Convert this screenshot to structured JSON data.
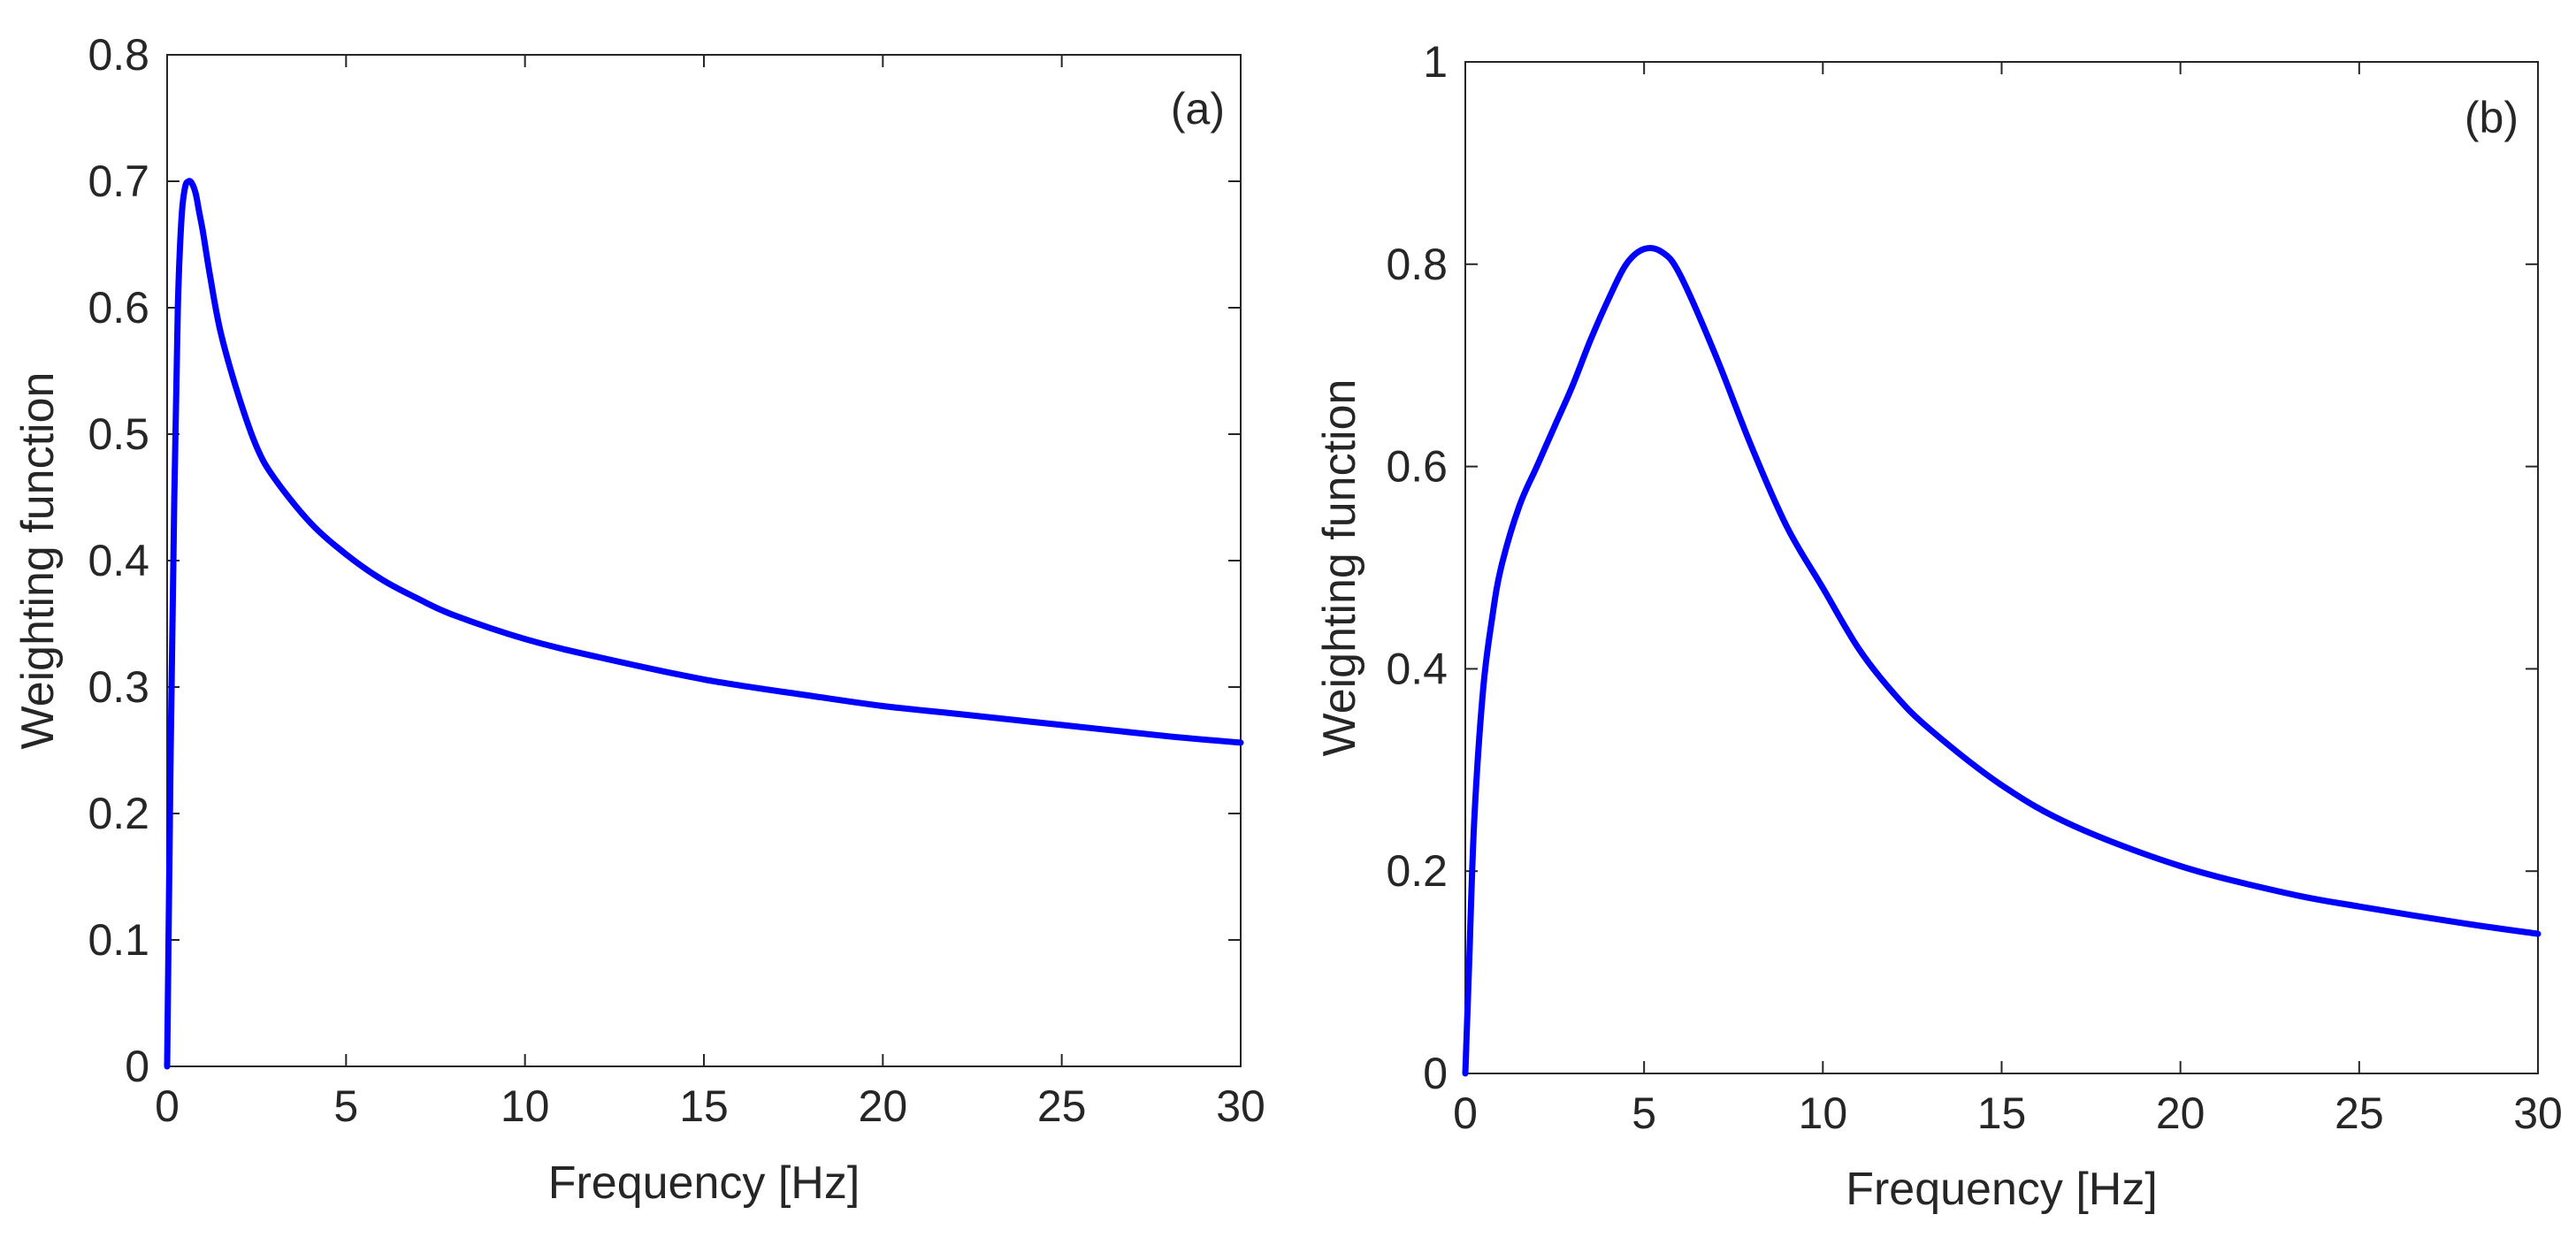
{
  "chart_data": [
    {
      "type": "line",
      "panel_label": "(a)",
      "xlabel": "Frequency [Hz]",
      "ylabel": "Weighting function",
      "xlim": [
        0,
        30
      ],
      "ylim": [
        0,
        0.8
      ],
      "xticks": [
        0,
        5,
        10,
        15,
        20,
        25,
        30
      ],
      "xtick_labels": [
        "0",
        "5",
        "10",
        "15",
        "20",
        "25",
        "30"
      ],
      "yticks": [
        0,
        0.1,
        0.2,
        0.3,
        0.4,
        0.5,
        0.6,
        0.7,
        0.8
      ],
      "ytick_labels": [
        "0",
        "0.1",
        "0.2",
        "0.3",
        "0.4",
        "0.5",
        "0.6",
        "0.7",
        "0.8"
      ],
      "series": [
        {
          "name": "weighting",
          "color": "#0000ff",
          "x": [
            0,
            0.1,
            0.2,
            0.3,
            0.4,
            0.5,
            0.6,
            0.7,
            0.8,
            0.9,
            1.0,
            1.2,
            1.5,
            2,
            2.5,
            3,
            4,
            5,
            6,
            7,
            8,
            10,
            12,
            15,
            18,
            20,
            22,
            25,
            28,
            30
          ],
          "y": [
            0,
            0.25,
            0.45,
            0.6,
            0.67,
            0.695,
            0.7,
            0.698,
            0.69,
            0.675,
            0.66,
            0.625,
            0.58,
            0.53,
            0.49,
            0.465,
            0.43,
            0.405,
            0.385,
            0.37,
            0.357,
            0.338,
            0.324,
            0.306,
            0.293,
            0.285,
            0.279,
            0.27,
            0.261,
            0.256
          ]
        }
      ]
    },
    {
      "type": "line",
      "panel_label": "(b)",
      "xlabel": "Frequency [Hz]",
      "ylabel": "Weighting function",
      "xlim": [
        0,
        30
      ],
      "ylim": [
        0,
        1
      ],
      "xticks": [
        0,
        5,
        10,
        15,
        20,
        25,
        30
      ],
      "xtick_labels": [
        "0",
        "5",
        "10",
        "15",
        "20",
        "25",
        "30"
      ],
      "yticks": [
        0,
        0.2,
        0.4,
        0.6,
        0.8,
        1
      ],
      "ytick_labels": [
        "0",
        "0.2",
        "0.4",
        "0.6",
        "0.8",
        "1"
      ],
      "series": [
        {
          "name": "weighting",
          "color": "#0000ff",
          "x": [
            0,
            0.1,
            0.25,
            0.5,
            0.75,
            1,
            1.5,
            2,
            2.5,
            3,
            3.5,
            4,
            4.5,
            5,
            5.5,
            6,
            7,
            8,
            9,
            10,
            11,
            12,
            13,
            15,
            17,
            20,
            23,
            25,
            28,
            30
          ],
          "y": [
            0,
            0.1,
            0.25,
            0.38,
            0.45,
            0.5,
            0.56,
            0.6,
            0.64,
            0.68,
            0.725,
            0.765,
            0.8,
            0.815,
            0.812,
            0.79,
            0.71,
            0.62,
            0.54,
            0.48,
            0.42,
            0.375,
            0.34,
            0.285,
            0.245,
            0.205,
            0.178,
            0.165,
            0.148,
            0.138
          ]
        }
      ]
    }
  ]
}
